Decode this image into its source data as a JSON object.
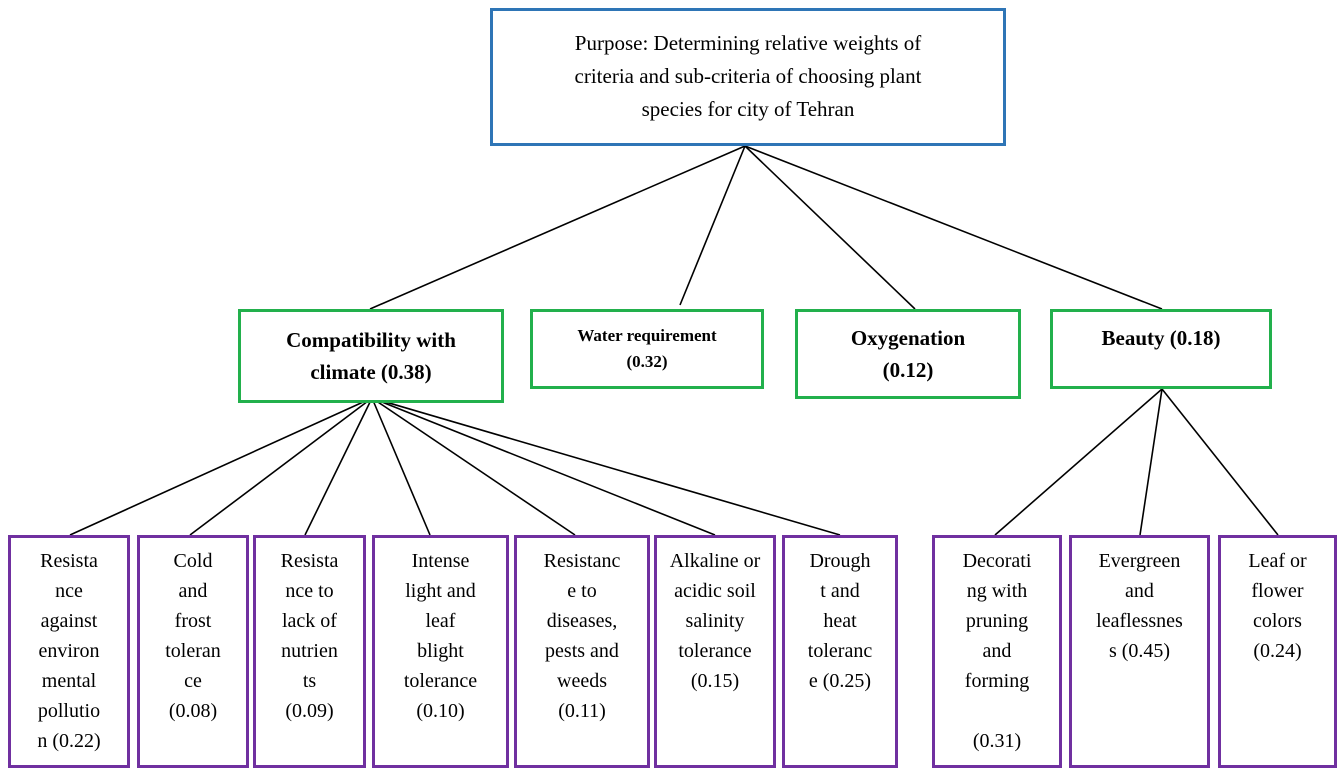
{
  "goal": {
    "line1": "Purpose: Determining relative weights of",
    "line2": "criteria and sub-criteria of choosing plant",
    "line3": "species for city of Tehran"
  },
  "criteria": {
    "climate": {
      "line1": "Compatibility with",
      "line2": "climate (0.38)"
    },
    "water": {
      "line1": "Water requirement",
      "line2": "(0.32)"
    },
    "oxygenation": {
      "line1": "Oxygenation",
      "line2": "(0.12)"
    },
    "beauty": {
      "line1": "Beauty (0.18)"
    }
  },
  "sub_criteria": {
    "pollution": [
      "Resista",
      "nce",
      "against",
      "environ",
      "mental",
      "pollutio",
      "n (0.22)"
    ],
    "cold": [
      "Cold",
      "and",
      "frost",
      "toleran",
      "ce",
      "(0.08)"
    ],
    "nutrients": [
      "Resista",
      "nce to",
      "lack of",
      "nutrien",
      "ts",
      "(0.09)"
    ],
    "light": [
      "Intense",
      "light and",
      "leaf",
      "blight",
      "tolerance",
      "(0.10)"
    ],
    "diseases": [
      "Resistanc",
      "e to",
      "diseases,",
      "pests and",
      "weeds",
      "(0.11)"
    ],
    "salinity": [
      "Alkaline or",
      "acidic soil",
      "salinity",
      "tolerance",
      "(0.15)"
    ],
    "drought": [
      "Drough",
      "t and",
      "heat",
      "toleranc",
      "e (0.25)"
    ],
    "pruning": [
      "Decorati",
      "ng with",
      "pruning",
      "and",
      "forming",
      "",
      "(0.31)"
    ],
    "evergreen": [
      "Evergreen",
      "and",
      "leaflessnes",
      "s (0.45)"
    ],
    "colors": [
      "Leaf or",
      "flower",
      "colors",
      "(0.24)"
    ]
  }
}
